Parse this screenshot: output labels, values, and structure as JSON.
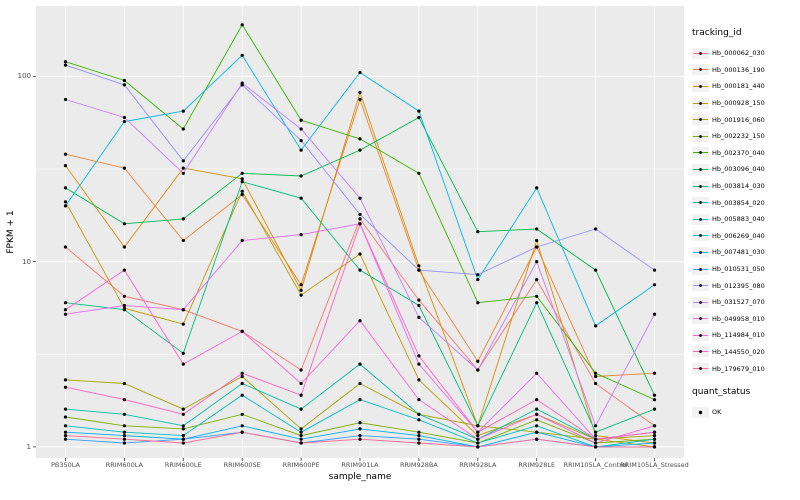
{
  "chart_data": {
    "type": "line",
    "title": "",
    "xlabel": "sample_name",
    "ylabel": "FPKM + 1",
    "yscale": "log10",
    "yticks": [
      1,
      10,
      100
    ],
    "ytick_labels": [
      "1",
      "10",
      "100"
    ],
    "minor_ticks_log10": [
      0.5,
      1.5,
      2.5
    ],
    "ylog_range": [
      -0.06,
      2.38
    ],
    "grid": true,
    "panel_bg": "#EBEBEB",
    "grid_color": "#FFFFFF",
    "point_color": "#000000",
    "legend": {
      "title": "tracking_id",
      "position": "right"
    },
    "legend2": {
      "title": "quant_status",
      "items": [
        "OK"
      ]
    },
    "categories": [
      "PB350LA",
      "RRIM600LA",
      "RRIM600LE",
      "RRIM600SE",
      "RRIM600PE",
      "RRIM901LA",
      "RRIM928BA",
      "RRIM928LA",
      "RRIM928LE",
      "RRIM105LA_Control",
      "RRIM105LA_Stressed"
    ],
    "series": [
      {
        "name": "Hb_000062_030",
        "color": "#F8766D",
        "values": [
          12,
          6.5,
          5.5,
          4.2,
          2.6,
          17,
          6.2,
          2.6,
          8,
          2.2,
          1.3
        ]
      },
      {
        "name": "Hb_000136_190",
        "color": "#EA8331",
        "values": [
          38,
          32,
          13,
          23,
          7.5,
          75,
          9,
          2.9,
          12,
          2.4,
          2.5
        ]
      },
      {
        "name": "Hb_000181_440",
        "color": "#D89000",
        "values": [
          33,
          12,
          32,
          28,
          7,
          82,
          9.5,
          1.3,
          13,
          1.15,
          1.05
        ]
      },
      {
        "name": "Hb_000928_150",
        "color": "#C09B00",
        "values": [
          21,
          5.6,
          4.6,
          24,
          6.6,
          11,
          2.3,
          1.15,
          1.5,
          1.1,
          1.0
        ]
      },
      {
        "name": "Hb_001916_060",
        "color": "#A3A500",
        "values": [
          2.3,
          2.2,
          1.6,
          2.4,
          1.25,
          2.2,
          1.5,
          1.3,
          1.2,
          1.1,
          1.15
        ]
      },
      {
        "name": "Hb_002232_150",
        "color": "#7CAE00",
        "values": [
          1.45,
          1.3,
          1.25,
          1.5,
          1.15,
          1.35,
          1.2,
          1.05,
          1.4,
          1.05,
          1.1
        ]
      },
      {
        "name": "Hb_002370_040",
        "color": "#39B600",
        "values": [
          120,
          95,
          52,
          190,
          58,
          46,
          30,
          6,
          6.5,
          2.5,
          1.8
        ]
      },
      {
        "name": "Hb_003096_040",
        "color": "#00BB4E",
        "values": [
          25,
          16,
          17,
          30,
          29,
          40,
          60,
          14.5,
          15,
          9,
          1.9
        ]
      },
      {
        "name": "Hb_003814_030",
        "color": "#00BF7D",
        "values": [
          6,
          5.5,
          3.2,
          27,
          22,
          9,
          5.8,
          1.3,
          6,
          1.2,
          1.6
        ]
      },
      {
        "name": "Hb_003854_020",
        "color": "#00C1A3",
        "values": [
          1.6,
          1.5,
          1.3,
          2.2,
          1.6,
          2.8,
          1.5,
          1.1,
          1.6,
          1.1,
          1.2
        ]
      },
      {
        "name": "Hb_005883_040",
        "color": "#00BFC4",
        "values": [
          1.3,
          1.2,
          1.15,
          1.9,
          1.2,
          1.8,
          1.4,
          1.05,
          1.3,
          1.0,
          1.1
        ]
      },
      {
        "name": "Hb_006269_040",
        "color": "#00BAE0",
        "values": [
          20,
          57,
          65,
          130,
          40,
          105,
          65,
          8,
          25,
          4.5,
          7.5
        ]
      },
      {
        "name": "Hb_007481_030",
        "color": "#00B0F6",
        "values": [
          1.2,
          1.15,
          1.1,
          1.3,
          1.1,
          1.25,
          1.15,
          1.0,
          1.2,
          1.0,
          1.05
        ]
      },
      {
        "name": "Hb_010531_050",
        "color": "#35A2FF",
        "values": [
          1.1,
          1.05,
          1.1,
          1.2,
          1.05,
          1.15,
          1.1,
          1.0,
          1.1,
          1.0,
          1.0
        ]
      },
      {
        "name": "Hb_012395_080",
        "color": "#9590FF",
        "values": [
          115,
          90,
          35,
          90,
          45,
          18,
          9,
          8.5,
          12,
          15,
          9
        ]
      },
      {
        "name": "Hb_031527_070",
        "color": "#C77CFF",
        "values": [
          75,
          60,
          30,
          92,
          52,
          22,
          5,
          2.6,
          10,
          1.3,
          5.2
        ]
      },
      {
        "name": "Hb_049958_010",
        "color": "#E76BF3",
        "values": [
          5.2,
          5.8,
          5.5,
          13,
          14,
          16,
          2.8,
          1.2,
          2.5,
          1.1,
          1.2
        ]
      },
      {
        "name": "Hb_114984_010",
        "color": "#FA62DB",
        "values": [
          5.5,
          9,
          2.8,
          4.2,
          2.2,
          4.8,
          1.8,
          1.1,
          1.5,
          1.05,
          1.3
        ]
      },
      {
        "name": "Hb_144550_020",
        "color": "#FF62BC",
        "values": [
          2.1,
          1.8,
          1.5,
          2.5,
          1.9,
          16,
          3.1,
          1.2,
          1.8,
          1.1,
          1.2
        ]
      },
      {
        "name": "Hb_179679_010",
        "color": "#FF6A98",
        "values": [
          1.15,
          1.1,
          1.05,
          1.2,
          1.05,
          1.1,
          1.05,
          1.0,
          1.1,
          1.0,
          1.0
        ]
      }
    ]
  }
}
